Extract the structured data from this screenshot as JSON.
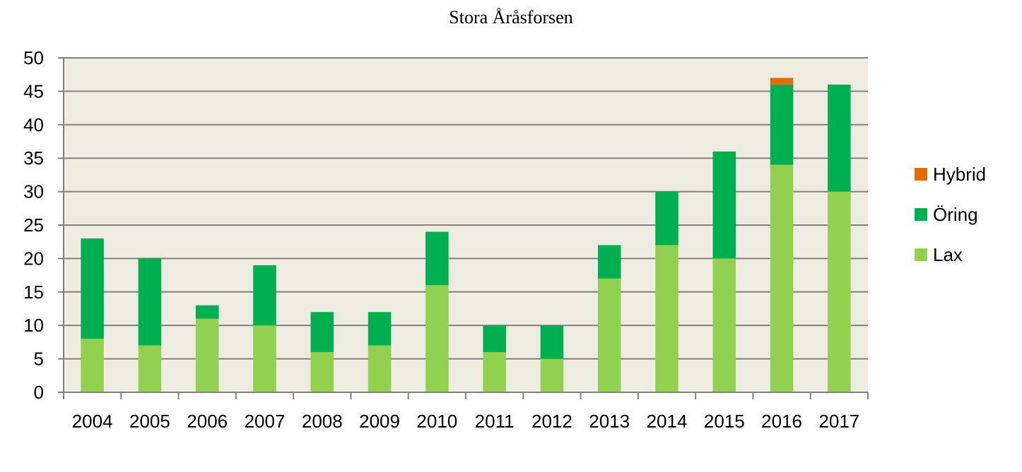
{
  "chart_data": {
    "type": "bar",
    "stacked": true,
    "title": "Stora Åråsforsen",
    "xlabel": "",
    "ylabel": "",
    "categories": [
      "2004",
      "2005",
      "2006",
      "2007",
      "2008",
      "2009",
      "2010",
      "2011",
      "2012",
      "2013",
      "2014",
      "2015",
      "2016",
      "2017"
    ],
    "series": [
      {
        "name": "Lax",
        "color": "#92d050",
        "values": [
          8,
          7,
          11,
          10,
          6,
          7,
          16,
          6,
          5,
          17,
          22,
          20,
          34,
          30
        ]
      },
      {
        "name": "Öring",
        "color": "#00b050",
        "values": [
          15,
          13,
          2,
          9,
          6,
          5,
          8,
          4,
          5,
          5,
          8,
          16,
          12,
          16
        ]
      },
      {
        "name": "Hybrid",
        "color": "#e36c0a",
        "values": [
          0,
          0,
          0,
          0,
          0,
          0,
          0,
          0,
          0,
          0,
          0,
          0,
          1,
          0
        ]
      }
    ],
    "ylim": [
      0,
      50
    ],
    "yticks": [
      0,
      5,
      10,
      15,
      20,
      25,
      30,
      35,
      40,
      45,
      50
    ],
    "grid": true,
    "plot_background": "#eeece1",
    "gridline_color": "#808080",
    "legend_position": "right",
    "legend_order": [
      "Hybrid",
      "Öring",
      "Lax"
    ]
  }
}
